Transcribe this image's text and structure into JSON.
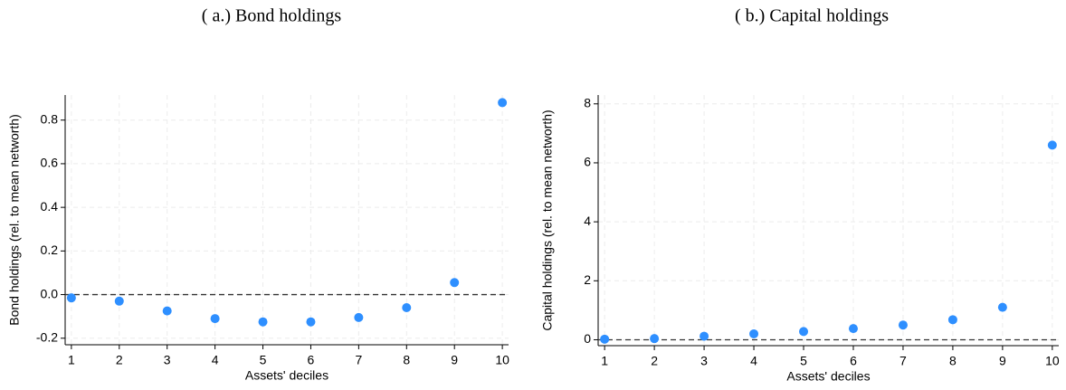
{
  "chart_data": [
    {
      "type": "scatter",
      "title": "( a.) Bond holdings",
      "xlabel": "Assets' deciles",
      "ylabel": "Bond holdings (rel. to mean networth)",
      "x": [
        1,
        2,
        3,
        4,
        5,
        6,
        7,
        8,
        9,
        10
      ],
      "series": [
        {
          "color": "#2e8fff",
          "values": [
            -0.015,
            -0.03,
            -0.075,
            -0.11,
            -0.125,
            -0.125,
            -0.105,
            -0.06,
            0.055,
            0.88
          ]
        }
      ],
      "xlim": [
        0.87,
        10.13
      ],
      "xticks": [
        1,
        2,
        3,
        4,
        5,
        6,
        7,
        8,
        9,
        10
      ],
      "ylim": [
        -0.23,
        0.915
      ],
      "yticks": [
        {
          "value": -0.2,
          "label": "-0.2"
        },
        {
          "value": 0,
          "label": "0.0"
        },
        0.2,
        0.4,
        0.6,
        0.8
      ],
      "hline": 0,
      "grid": true
    },
    {
      "type": "scatter",
      "title": "( b.) Capital holdings",
      "xlabel": "Assets' deciles",
      "ylabel": "Capital holdings (rel. to mean networth)",
      "x": [
        1,
        2,
        3,
        4,
        5,
        6,
        7,
        8,
        9,
        10
      ],
      "series": [
        {
          "color": "#2e8fff",
          "values": [
            0.02,
            0.04,
            0.12,
            0.2,
            0.28,
            0.38,
            0.5,
            0.68,
            1.1,
            6.6
          ]
        }
      ],
      "xlim": [
        0.87,
        10.13
      ],
      "xticks": [
        1,
        2,
        3,
        4,
        5,
        6,
        7,
        8,
        9,
        10
      ],
      "ylim": [
        -0.2,
        8.3
      ],
      "yticks": [
        0,
        2,
        4,
        6,
        8
      ],
      "hline": 0,
      "grid": true
    }
  ]
}
